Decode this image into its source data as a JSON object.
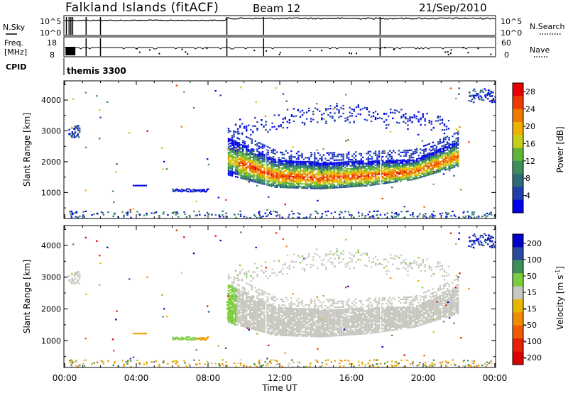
{
  "header": {
    "site": "Falkland Islands (fitACF)",
    "beam": "Beam 12",
    "date": "21/Sep/2010"
  },
  "top_panels": {
    "nsky_label": "N.Sky",
    "nsky_ticks": [
      "10^5",
      "10^0"
    ],
    "nsearch_label": "N.Search",
    "freq_label_1": "Freq.",
    "freq_label_2": "[MHz]",
    "freq_ticks": [
      "18",
      "8"
    ],
    "nave_label": "Nave",
    "nave_ticks": [
      "60",
      "0"
    ],
    "cpid_label": "CPID",
    "cpid_value": "themis 3300"
  },
  "colors": {
    "power_scale": [
      "#0000ee",
      "#1f3fae",
      "#2e6b77",
      "#3c8f5a",
      "#5fb637",
      "#c8cc1a",
      "#f0b000",
      "#f07a00",
      "#ee3a00",
      "#e80000"
    ],
    "velocity_scale": [
      "#0000cc",
      "#2a4a9e",
      "#3d8f58",
      "#7ccc3d",
      "#c8c8c0",
      "#e8b800",
      "#f08a00",
      "#ee5a00",
      "#e82000",
      "#dd0000"
    ],
    "ground_grey": "#c6c6be"
  },
  "chart_data": [
    {
      "type": "heatmap",
      "name": "power-panel",
      "xlabel": "Time UT",
      "ylabel": "Slant Range [km]",
      "xlim": [
        0,
        24
      ],
      "ylim": [
        180,
        4600
      ],
      "x_tick_labels": [
        "00:00",
        "04:00",
        "08:00",
        "12:00",
        "16:00",
        "20:00",
        "00:00"
      ],
      "y_ticks": [
        1000,
        2000,
        3000,
        4000
      ],
      "colorbar_label": "Power [dB]",
      "colorbar_ticks": [
        4,
        8,
        12,
        16,
        20,
        24,
        28
      ],
      "colorbar_range": [
        0,
        30
      ],
      "features": [
        {
          "x": [
            9.1,
            22.0
          ],
          "y_low_km": [
            1600,
            1200,
            1150,
            1250,
            1450,
            1900
          ],
          "y_high_km": [
            2800,
            2100,
            2000,
            2050,
            2100,
            2700
          ],
          "peak_db": 26
        },
        {
          "x": [
            6.0,
            8.0
          ],
          "y_km": 1080,
          "db": 6
        },
        {
          "x": [
            10.0,
            21.0
          ],
          "y_km": [
            2900,
            3400
          ],
          "db": 4
        }
      ]
    },
    {
      "type": "heatmap",
      "name": "velocity-panel",
      "xlabel": "Time UT",
      "ylabel": "Slant Range [km]",
      "xlim": [
        0,
        24
      ],
      "ylim": [
        180,
        4600
      ],
      "x_tick_labels": [
        "00:00",
        "04:00",
        "08:00",
        "12:00",
        "16:00",
        "20:00",
        "00:00"
      ],
      "y_ticks": [
        1000,
        2000,
        3000,
        4000
      ],
      "colorbar_label": "Velocity [m s^-1]",
      "colorbar_ticks": [
        200,
        100,
        50,
        15,
        -15,
        -50,
        -100,
        -200
      ],
      "colorbar_range": [
        -250,
        250
      ],
      "features": [
        {
          "x": [
            9.1,
            22.0
          ],
          "velocity_ms": 0,
          "note": "ground scatter (grey)"
        },
        {
          "x": [
            9.0,
            9.5
          ],
          "y_km": [
            1700,
            2600
          ],
          "velocity_ms": 30
        },
        {
          "x": [
            6.0,
            8.0
          ],
          "y_km": 1080,
          "velocity_ms": 25
        }
      ]
    }
  ],
  "colorbars": {
    "power_title": "Power [dB]",
    "velocity_title": "Velocity [m s",
    "velocity_sup": "-1",
    "velocity_close": "]"
  }
}
